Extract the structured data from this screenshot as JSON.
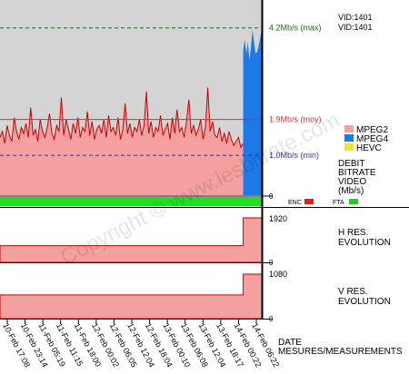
{
  "chart_data": [
    {
      "type": "area",
      "title": "DEBIT BITRATE VIDEO (Mb/s)",
      "label_lines": [
        "DEBIT",
        "BITRATE",
        "VIDEO",
        "(Mb/s)"
      ],
      "ylim": [
        0,
        4.9
      ],
      "zero_label": "0",
      "reference_lines": [
        {
          "value": 4.2,
          "label": "4.2Mb/s (max)",
          "color": "#1a6b1a",
          "style": "dashed"
        },
        {
          "value": 1.9,
          "label": "1.9Mb/s (moy)",
          "color": "#d43030",
          "style": "solid"
        },
        {
          "value": 1.0,
          "label": "1.0Mb/s (min)",
          "color": "#3030c8",
          "style": "dashed"
        }
      ],
      "legend": [
        {
          "name": "MPEG2",
          "color": "#f4a0a0"
        },
        {
          "name": "MPEG4",
          "color": "#1e78e6"
        },
        {
          "name": "HEVC",
          "color": "#e6e63c"
        }
      ],
      "series": [
        {
          "name": "MPEG2",
          "color": "#f4a0a0",
          "x_range": [
            0,
            0.929
          ],
          "baseline_mbps": 1.0,
          "values_mbps": [
            1.45,
            1.6,
            1.3,
            1.75,
            1.5,
            1.35,
            1.95,
            1.6,
            1.4,
            1.7,
            1.55,
            1.8,
            1.45,
            2.2,
            1.5,
            1.65,
            1.35,
            1.9,
            1.6,
            1.45,
            1.7,
            2.05,
            1.55,
            1.4,
            1.75,
            1.6,
            2.45,
            1.5,
            1.9,
            1.65,
            1.4,
            1.8,
            1.55,
            1.95,
            1.45,
            1.7,
            1.6,
            2.1,
            1.5,
            1.85,
            1.4,
            1.65,
            1.75,
            1.55,
            1.9,
            1.45,
            2.0,
            1.6,
            1.7,
            1.5,
            1.95,
            1.4,
            1.65,
            2.3,
            1.55,
            1.8,
            1.45,
            1.7,
            1.6,
            1.9,
            1.5,
            1.75,
            2.6,
            1.55,
            1.85,
            1.45,
            1.7,
            1.6,
            2.0,
            1.5,
            1.65,
            1.8,
            1.4,
            1.95,
            1.55,
            2.15,
            1.6,
            1.7,
            1.45,
            1.85,
            2.4,
            1.55,
            1.75,
            1.5,
            1.65,
            1.9,
            1.4,
            1.7,
            2.7,
            1.6,
            1.85,
            1.5,
            1.45,
            1.7,
            1.35,
            1.55,
            1.3,
            1.6,
            1.4,
            1.25,
            1.35,
            1.45,
            1.2,
            1.3
          ]
        },
        {
          "name": "MPEG4",
          "color": "#1e78e6",
          "x_range": [
            0.929,
            1.0
          ],
          "values_mbps": [
            3.65,
            3.9,
            3.55,
            3.85,
            3.4,
            3.7,
            4.15,
            3.85,
            3.55,
            3.6,
            3.75,
            3.95,
            4.2
          ]
        }
      ],
      "x_tick_labels": [
        "10-Feb 17:08",
        "10-Feb 23:14",
        "11-Feb 05:19",
        "11-Feb 11:15",
        "11-Feb 18:00",
        "12-Feb 00:02",
        "12-Feb 06:05",
        "12-Feb 12:04",
        "12-Feb 18:04",
        "13-Feb 00:10",
        "13-Feb 06:08",
        "13-Feb 12:04",
        "13-Feb 18:17",
        "14-Feb 00:22",
        "14-Feb 06:22"
      ]
    },
    {
      "type": "area",
      "title": "H RES. EVOLUTION",
      "label_lines": [
        "H RES.",
        "EVOLUTION"
      ],
      "steps": [
        {
          "from": 0,
          "to": 0.929,
          "value": 720
        },
        {
          "from": 0.929,
          "to": 1.0,
          "value": 1920
        }
      ],
      "ymax_label": "1920",
      "zero_label": "0"
    },
    {
      "type": "area",
      "title": "V RES. EVOLUTION",
      "label_lines": [
        "V RES.",
        "EVOLUTION"
      ],
      "steps": [
        {
          "from": 0,
          "to": 0.929,
          "value": 576
        },
        {
          "from": 0.929,
          "to": 1.0,
          "value": 1080
        }
      ],
      "ymax_label": "1080",
      "zero_label": "0"
    }
  ],
  "vid_lines": [
    "VID:1401",
    "VID:1401"
  ],
  "status_bar": {
    "color": "#22dd22",
    "flags": [
      {
        "label": "ENC",
        "color": "#dd2020"
      },
      {
        "label": "FTA",
        "color": "#22cc22"
      }
    ]
  },
  "footer_lines": [
    "DATE",
    "MESURES/MEASUREMENTS"
  ],
  "watermark": "Copyright © www.lesbitrate.com",
  "colors": {
    "plot_bg": "#d4d4d4",
    "fill": "#f4a0a0",
    "line": "#cc0000",
    "axis": "#000000"
  }
}
